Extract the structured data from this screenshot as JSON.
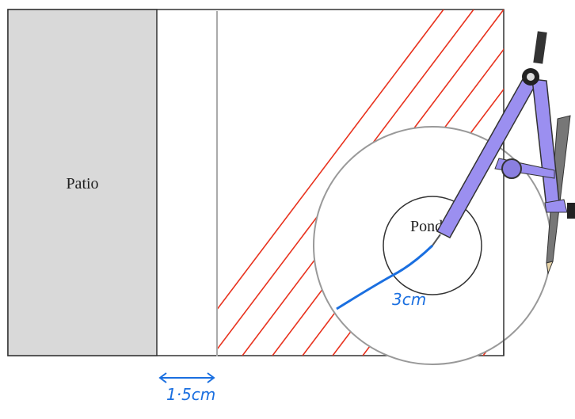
{
  "labels": {
    "patio": "Patio",
    "pond": "Pond",
    "radius": "3cm",
    "gap": "1·5cm"
  }
}
